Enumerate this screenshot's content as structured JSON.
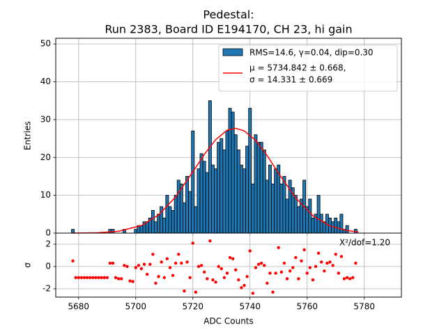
{
  "chart_data": [
    {
      "type": "histogram",
      "title": [
        "Pedestal:",
        "Run 2383, Board ID E194170, CH 23, hi gain"
      ],
      "ylabel": "Entries",
      "name": "RMS=14.6, γ=0.04, dip=0.30",
      "color": "#1f77b4",
      "edgecolor": "#000000",
      "bins": [
        5677.5,
        5678.5,
        5679.5,
        5680.5,
        5681.5,
        5682.5,
        5683.5,
        5684.5,
        5685.5,
        5686.5,
        5687.5,
        5688.5,
        5689.5,
        5690.5,
        5691.5,
        5692.5,
        5693.5,
        5694.5,
        5695.5,
        5696.5,
        5697.5,
        5698.5,
        5699.5,
        5700.5,
        5701.5,
        5702.5,
        5703.5,
        5704.5,
        5705.5,
        5706.5,
        5707.5,
        5708.5,
        5709.5,
        5710.5,
        5711.5,
        5712.5,
        5713.5,
        5714.5,
        5715.5,
        5716.5,
        5717.5,
        5718.5,
        5719.5,
        5720.5,
        5721.5,
        5722.5,
        5723.5,
        5724.5,
        5725.5,
        5726.5,
        5727.5,
        5728.5,
        5729.5,
        5730.5,
        5731.5,
        5732.5,
        5733.5,
        5734.5,
        5735.5,
        5736.5,
        5737.5,
        5738.5,
        5739.5,
        5740.5,
        5741.5,
        5742.5,
        5743.5,
        5744.5,
        5745.5,
        5746.5,
        5747.5,
        5748.5,
        5749.5,
        5750.5,
        5751.5,
        5752.5,
        5753.5,
        5754.5,
        5755.5,
        5756.5,
        5757.5,
        5758.5,
        5759.5,
        5760.5,
        5761.5,
        5762.5,
        5763.5,
        5764.5,
        5765.5,
        5766.5,
        5767.5,
        5768.5,
        5769.5,
        5770.5,
        5771.5,
        5772.5,
        5773.5,
        5774.5,
        5775.5,
        5776.5,
        5777.5
      ],
      "counts": [
        1,
        0,
        0,
        0,
        0,
        0,
        0,
        0,
        0,
        0,
        0,
        0,
        0,
        1,
        1,
        0,
        0,
        0,
        1,
        0,
        0,
        0,
        1,
        2,
        2,
        3,
        3,
        4,
        6,
        3,
        5,
        7,
        4,
        10,
        7,
        6,
        10,
        14,
        13,
        8,
        15,
        11,
        27,
        7,
        17,
        21,
        19,
        16,
        35,
        18,
        17,
        24,
        25,
        22,
        27,
        33,
        32,
        26,
        22,
        18,
        17,
        23,
        33,
        13,
        26,
        24,
        24,
        22,
        14,
        18,
        13,
        17,
        18,
        13,
        15,
        9,
        14,
        12,
        10,
        7,
        9,
        14,
        7,
        9,
        4,
        5,
        10,
        5,
        3,
        5,
        4,
        3,
        4,
        3,
        5,
        1,
        2,
        0,
        0,
        1
      ],
      "fit": {
        "name": [
          "μ = 5734.842 ± 0.668,",
          "σ = 14.331 ± 0.669"
        ],
        "color": "#ff0000",
        "x": [
          5678,
          5686,
          5694,
          5702,
          5708,
          5714,
          5720,
          5724,
          5728,
          5732,
          5735,
          5738,
          5742,
          5746,
          5750,
          5756,
          5762,
          5768,
          5774,
          5778
        ],
        "values": [
          0.01,
          0.08,
          0.48,
          2.0,
          4.8,
          9.6,
          16.2,
          20.8,
          24.7,
          27.2,
          27.7,
          27.0,
          24.5,
          20.5,
          15.8,
          9.3,
          4.6,
          1.9,
          0.66,
          0.3
        ]
      },
      "xlim": [
        5672,
        5793
      ],
      "xticks": [
        5680,
        5700,
        5720,
        5740,
        5760,
        5780
      ],
      "ylim": [
        0,
        51.5
      ],
      "yticks": [
        0,
        10,
        20,
        30,
        40,
        50
      ],
      "grid": true,
      "legend": "upper right"
    },
    {
      "type": "scatter",
      "xlabel": "ADC Counts",
      "ylabel": "σ",
      "annotation": "X²/dof=1.20",
      "color": "#ff0000",
      "x": [
        5678,
        5679,
        5680,
        5681,
        5682,
        5683,
        5684,
        5685,
        5686,
        5687,
        5688,
        5689,
        5690,
        5691,
        5692,
        5693,
        5694,
        5695,
        5696,
        5697,
        5698,
        5699,
        5700,
        5701,
        5702,
        5703,
        5704,
        5705,
        5706,
        5707,
        5708,
        5709,
        5710,
        5711,
        5712,
        5713,
        5714,
        5715,
        5716,
        5717,
        5718,
        5719,
        5720,
        5721,
        5722,
        5723,
        5724,
        5725,
        5726,
        5727,
        5728,
        5729,
        5730,
        5731,
        5732,
        5733,
        5734,
        5735,
        5736,
        5737,
        5738,
        5739,
        5740,
        5741,
        5742,
        5743,
        5744,
        5745,
        5746,
        5747,
        5748,
        5749,
        5750,
        5751,
        5752,
        5753,
        5754,
        5755,
        5756,
        5757,
        5758,
        5759,
        5760,
        5761,
        5762,
        5763,
        5764,
        5765,
        5766,
        5767,
        5768,
        5769,
        5770,
        5771,
        5772,
        5773,
        5774,
        5775,
        5776,
        5777
      ],
      "values": [
        0.5,
        -1,
        -1,
        -1,
        -1,
        -1,
        -1,
        -1,
        -1,
        -1,
        -1,
        -1,
        -1,
        0.3,
        0.3,
        -1,
        -1.1,
        -1.1,
        0.1,
        0,
        -1.3,
        -1.35,
        -0.1,
        0.1,
        -0.2,
        0.2,
        -0.7,
        0.2,
        1.1,
        -1.5,
        -0.9,
        0.4,
        -1,
        0.7,
        -0.1,
        -0.8,
        0.3,
        1.1,
        0.3,
        -2.2,
        0.4,
        -1,
        2.1,
        -2.3,
        0,
        0.1,
        -0.5,
        -1.1,
        2.3,
        -1.2,
        -1.4,
        0,
        -0.2,
        -1,
        -0.6,
        0.8,
        0.7,
        -0.3,
        -1.2,
        -1.9,
        -1.7,
        -0.9,
        1.4,
        -2.4,
        -0.1,
        0.2,
        0.3,
        0.1,
        -1.5,
        -0.6,
        -2.3,
        -0.6,
        1.7,
        -0.5,
        0.3,
        -1.1,
        -0.4,
        -0.1,
        0.8,
        -1.1,
        0.5,
        1.5,
        -0.6,
        -0.1,
        -1.2,
        0,
        1.2,
        0.4,
        -0.4,
        0.3,
        0.4,
        0.1,
        1.1,
        -0.6,
        0.9,
        -1.1,
        -1,
        -1.1,
        -1,
        0.3
      ],
      "xlim": [
        5672,
        5793
      ],
      "xticks": [
        5680,
        5700,
        5720,
        5740,
        5760,
        5780
      ],
      "ylim": [
        -2.75,
        3
      ],
      "yticks": [
        -2,
        0,
        2
      ],
      "grid": true
    }
  ]
}
